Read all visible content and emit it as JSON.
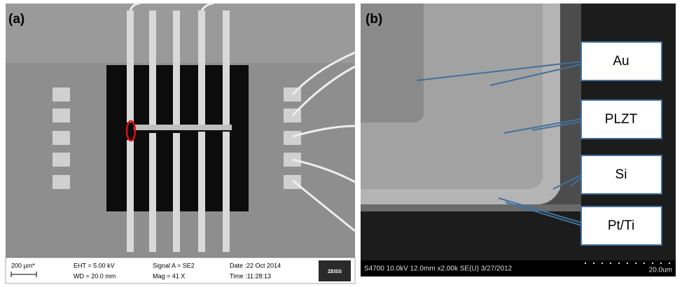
{
  "panel_a": {
    "label": "(a)",
    "scale": "200 µm*",
    "eht": "EHT =  5.00 kV",
    "wd": "WD = 20.0 mm",
    "signal": "Signal A = SE2",
    "mag": "Mag =     41 X",
    "date": "Date :22 Oct 2014",
    "time": "Time :11:28:13",
    "brand": "ZEISS"
  },
  "panel_b": {
    "label": "(b)",
    "callouts": [
      "Au",
      "PLZT",
      "Si",
      "Pt/Ti"
    ],
    "info": "S4700 10.0kV 12.0mm x2.00k SE(U) 3/27/2012",
    "scale": "20.0um"
  }
}
